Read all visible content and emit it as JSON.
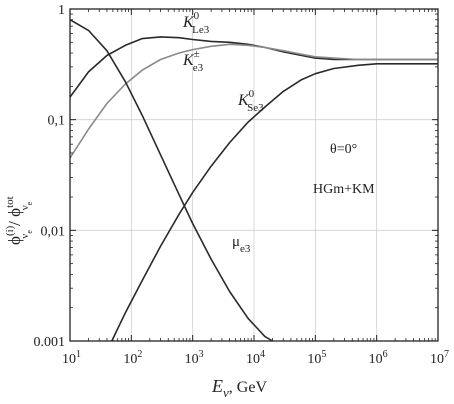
{
  "chart_data": {
    "type": "line",
    "xscale": "log",
    "yscale": "log",
    "xlim": [
      10,
      10000000
    ],
    "ylim": [
      0.001,
      1
    ],
    "grid": true,
    "xlabel_main": "E",
    "xlabel_sub": "ν",
    "xlabel_unit": ", GeV",
    "ylabel": {
      "phi": "ϕ",
      "num_sup": "(i)",
      "num_sub": "ν",
      "num_subsub": "e",
      "slash": " / ",
      "den_sup": "tot",
      "den_sub": "ν",
      "den_subsub": "e"
    },
    "x_ticks": [
      {
        "base": "10",
        "exp": "1",
        "value": 10
      },
      {
        "base": "10",
        "exp": "2",
        "value": 100
      },
      {
        "base": "10",
        "exp": "3",
        "value": 1000
      },
      {
        "base": "10",
        "exp": "4",
        "value": 10000
      },
      {
        "base": "10",
        "exp": "5",
        "value": 100000
      },
      {
        "base": "10",
        "exp": "6",
        "value": 1000000
      },
      {
        "base": "10",
        "exp": "7",
        "value": 10000000
      }
    ],
    "y_ticks": [
      {
        "label": "1",
        "value": 1
      },
      {
        "label": "0,1",
        "value": 0.1
      },
      {
        "label": "0,01",
        "value": 0.01
      },
      {
        "label": "0.001",
        "value": 0.001
      }
    ],
    "annotations": {
      "theta": "θ=0°",
      "model": "HGm+KM"
    },
    "series": [
      {
        "label_main": "K",
        "label_sup": "0",
        "label_sub": "Le3",
        "color": "#2a2a2a",
        "x": [
          10,
          20,
          40,
          80,
          150,
          300,
          600,
          1000,
          2000,
          4000,
          8000,
          15000,
          30000,
          60000,
          100000,
          200000,
          500000,
          1000000,
          3000000,
          10000000
        ],
        "y": [
          0.16,
          0.27,
          0.38,
          0.47,
          0.54,
          0.56,
          0.55,
          0.53,
          0.51,
          0.5,
          0.48,
          0.45,
          0.41,
          0.38,
          0.36,
          0.35,
          0.35,
          0.35,
          0.35,
          0.35
        ]
      },
      {
        "label_main": "K",
        "label_sup": "±",
        "label_sub": "e3",
        "color": "#8a8a8a",
        "x": [
          10,
          20,
          40,
          80,
          150,
          300,
          600,
          1000,
          2000,
          4000,
          8000,
          15000,
          30000,
          60000,
          100000,
          200000,
          500000,
          1000000,
          3000000,
          10000000
        ],
        "y": [
          0.045,
          0.082,
          0.14,
          0.21,
          0.28,
          0.35,
          0.4,
          0.43,
          0.46,
          0.48,
          0.47,
          0.45,
          0.42,
          0.39,
          0.37,
          0.36,
          0.35,
          0.35,
          0.35,
          0.35
        ]
      },
      {
        "label_main": "K",
        "label_sup": "0",
        "label_sub": "Se3",
        "color": "#2a2a2a",
        "x": [
          48,
          80,
          150,
          300,
          600,
          1000,
          2000,
          4000,
          8000,
          15000,
          30000,
          60000,
          100000,
          200000,
          500000,
          1000000,
          3000000,
          10000000
        ],
        "y": [
          0.001,
          0.0018,
          0.0035,
          0.0072,
          0.014,
          0.022,
          0.038,
          0.062,
          0.095,
          0.13,
          0.18,
          0.23,
          0.26,
          0.29,
          0.31,
          0.32,
          0.32,
          0.32
        ]
      },
      {
        "label_main": "μ",
        "label_sup": "",
        "label_sub": "e3",
        "color": "#2a2a2a",
        "x": [
          10,
          20,
          40,
          80,
          150,
          300,
          600,
          1000,
          2000,
          4000,
          8000,
          15000,
          20000
        ],
        "y": [
          0.8,
          0.64,
          0.42,
          0.22,
          0.11,
          0.048,
          0.021,
          0.0115,
          0.0055,
          0.0028,
          0.0016,
          0.0011,
          0.001
        ]
      }
    ]
  }
}
